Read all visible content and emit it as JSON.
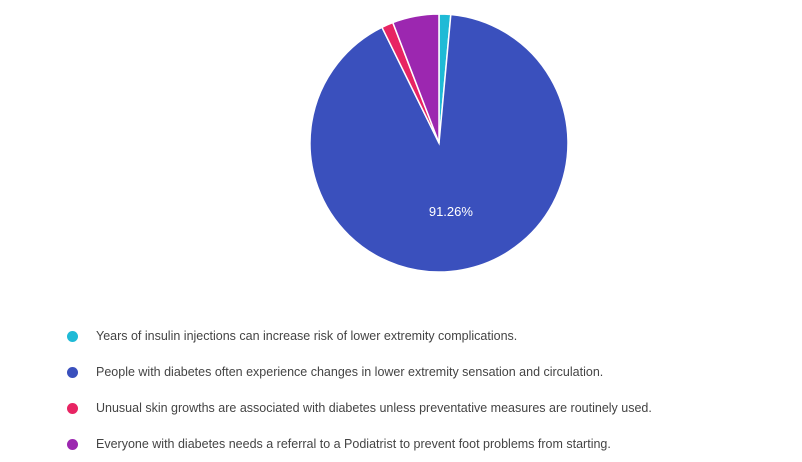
{
  "chart_data": {
    "type": "pie",
    "slices": [
      {
        "label": "Years of insulin injections can increase risk of lower extremity complications.",
        "value": 1.46,
        "color": "#1fbad6"
      },
      {
        "label": "People with diabetes often experience changes in lower extremity sensation and circulation.",
        "value": 91.26,
        "color": "#3a50bd"
      },
      {
        "label": "Unusual skin growths are associated with diabetes unless preventative measures are routinely used.",
        "value": 1.46,
        "color": "#e82463"
      },
      {
        "label": "Everyone with diabetes needs a referral to a Podiatrist to prevent foot problems from starting.",
        "value": 5.83,
        "color": "#9c27b0"
      }
    ],
    "data_labels": [
      "",
      "91.26%",
      "",
      ""
    ],
    "start_angle_deg": 0,
    "direction": "clockwise",
    "legend_position": "bottom-left"
  }
}
